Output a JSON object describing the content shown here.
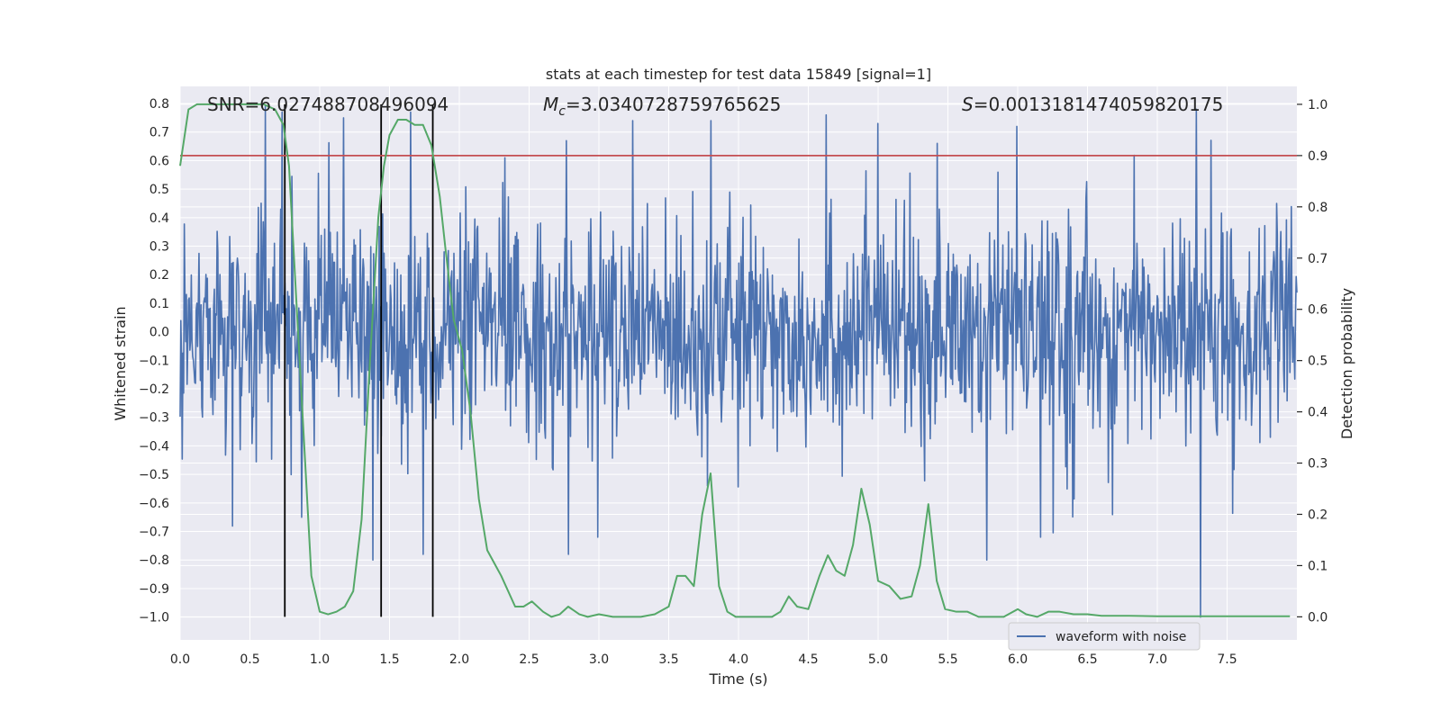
{
  "chart_data": {
    "type": "line",
    "title": "stats at each timestep for test data 15849 [signal=1]",
    "xlabel": "Time (s)",
    "ylabel": "Whitened strain",
    "y2label": "Detection probability",
    "xlim": [
      0.0,
      8.0
    ],
    "ylim": [
      -1.08,
      0.86
    ],
    "y2lim": [
      -0.045,
      1.035
    ],
    "xticks": [
      "0.0",
      "0.5",
      "1.0",
      "1.5",
      "2.0",
      "2.5",
      "3.0",
      "3.5",
      "4.0",
      "4.5",
      "5.0",
      "5.5",
      "6.0",
      "6.5",
      "7.0",
      "7.5"
    ],
    "yticks": [
      "0.8",
      "0.7",
      "0.6",
      "0.5",
      "0.4",
      "0.3",
      "0.2",
      "0.1",
      "0.0",
      "-0.1",
      "-0.2",
      "-0.3",
      "-0.4",
      "-0.5",
      "-0.6",
      "-0.7",
      "-0.8",
      "-0.9",
      "-1.0"
    ],
    "y2ticks": [
      "1.0",
      "0.9",
      "0.8",
      "0.7",
      "0.6",
      "0.5",
      "0.4",
      "0.3",
      "0.2",
      "0.1",
      "0.0"
    ],
    "annotations": {
      "snr": "SNR=6.027488708496094",
      "mc_symbol": "M",
      "mc_sub": "c",
      "mc_value": "=3.0340728759765625",
      "s_symbol": "S",
      "s_value": "=0.0013181474059820175"
    },
    "threshold": {
      "value": 0.9,
      "axis": "right",
      "color": "#c44e52"
    },
    "vertical_lines": [
      0.75,
      1.44,
      1.81
    ],
    "waveform": {
      "name": "waveform with noise",
      "color": "#4c72b0",
      "n_samples": 1600,
      "typical_amplitude": 0.24,
      "extreme_spikes": [
        {
          "t": 0.61,
          "v": 0.79
        },
        {
          "t": 0.73,
          "v": 0.77
        },
        {
          "t": 1.17,
          "v": 0.75
        },
        {
          "t": 1.65,
          "v": 0.77
        },
        {
          "t": 3.24,
          "v": 0.74
        },
        {
          "t": 3.8,
          "v": 0.74
        },
        {
          "t": 4.63,
          "v": 0.76
        },
        {
          "t": 5.0,
          "v": 0.73
        },
        {
          "t": 7.28,
          "v": 0.78
        },
        {
          "t": 0.87,
          "v": -0.65
        },
        {
          "t": 1.38,
          "v": -0.8
        },
        {
          "t": 1.74,
          "v": -0.78
        },
        {
          "t": 2.78,
          "v": -0.78
        },
        {
          "t": 5.78,
          "v": -0.8
        },
        {
          "t": 7.31,
          "v": -1.0
        }
      ]
    },
    "probability": {
      "color": "#55a868",
      "x": [
        0.0,
        0.06,
        0.12,
        0.18,
        0.3,
        0.45,
        0.6,
        0.68,
        0.74,
        0.78,
        0.82,
        0.88,
        0.94,
        1.0,
        1.06,
        1.12,
        1.18,
        1.24,
        1.3,
        1.36,
        1.42,
        1.46,
        1.5,
        1.56,
        1.62,
        1.68,
        1.74,
        1.8,
        1.86,
        1.9,
        1.96,
        2.02,
        2.08,
        2.14,
        2.2,
        2.3,
        2.4,
        2.46,
        2.52,
        2.6,
        2.66,
        2.72,
        2.78,
        2.86,
        2.92,
        3.0,
        3.1,
        3.2,
        3.3,
        3.4,
        3.5,
        3.56,
        3.62,
        3.68,
        3.74,
        3.8,
        3.86,
        3.92,
        3.98,
        4.06,
        4.14,
        4.24,
        4.3,
        4.36,
        4.42,
        4.5,
        4.58,
        4.64,
        4.7,
        4.76,
        4.82,
        4.88,
        4.94,
        5.0,
        5.08,
        5.16,
        5.24,
        5.3,
        5.36,
        5.42,
        5.48,
        5.56,
        5.64,
        5.72,
        5.8,
        5.9,
        6.0,
        6.06,
        6.14,
        6.22,
        6.3,
        6.4,
        6.5,
        6.6,
        6.8,
        7.0,
        7.2,
        7.4,
        7.6,
        7.8,
        7.95
      ],
      "y": [
        0.88,
        0.99,
        1.0,
        1.0,
        1.0,
        1.0,
        1.0,
        0.99,
        0.96,
        0.88,
        0.68,
        0.38,
        0.08,
        0.01,
        0.005,
        0.01,
        0.02,
        0.05,
        0.19,
        0.5,
        0.78,
        0.88,
        0.94,
        0.97,
        0.97,
        0.96,
        0.96,
        0.92,
        0.82,
        0.72,
        0.58,
        0.52,
        0.4,
        0.23,
        0.13,
        0.08,
        0.02,
        0.02,
        0.03,
        0.01,
        0.0,
        0.005,
        0.02,
        0.005,
        0.0,
        0.005,
        0.0,
        0.0,
        0.0,
        0.005,
        0.02,
        0.08,
        0.08,
        0.06,
        0.2,
        0.28,
        0.06,
        0.01,
        0.0,
        0.0,
        0.0,
        0.0,
        0.01,
        0.04,
        0.02,
        0.015,
        0.08,
        0.12,
        0.09,
        0.08,
        0.14,
        0.25,
        0.18,
        0.07,
        0.06,
        0.035,
        0.04,
        0.1,
        0.22,
        0.07,
        0.015,
        0.01,
        0.01,
        0.0,
        0.0,
        0.0,
        0.015,
        0.005,
        0.0,
        0.01,
        0.01,
        0.005,
        0.005,
        0.002,
        0.002,
        0.001,
        0.001,
        0.001,
        0.001,
        0.001,
        0.001
      ]
    },
    "legend": {
      "label": "waveform with noise",
      "placement": "lower-right"
    },
    "grid": true,
    "background": "#eaeaf2"
  }
}
